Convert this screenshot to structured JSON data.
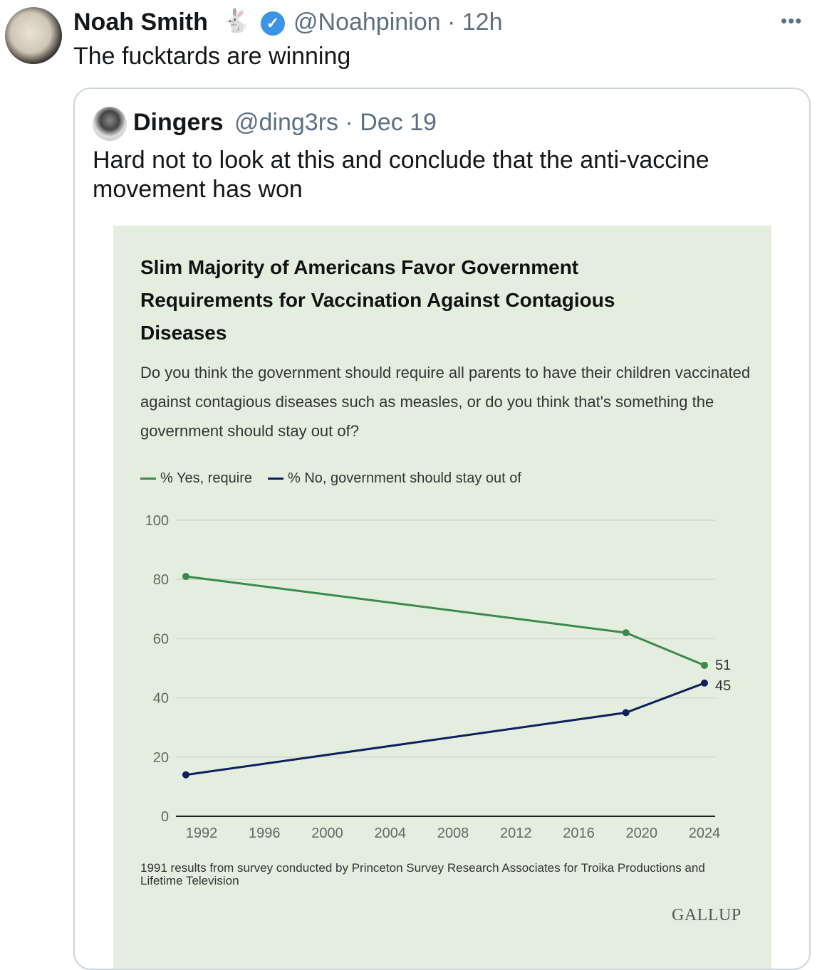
{
  "tweet": {
    "author_name": "Noah Smith",
    "emoji": "🐇",
    "handle_time": "@Noahpinion · 12h",
    "text": "The fucktards are winning",
    "more_icon": "more-horizontal-icon"
  },
  "quote": {
    "author_name": "Dingers",
    "handle_time": "@ding3rs · Dec 19",
    "text": "Hard not to look at this and conclude that the anti-vaccine movement has won"
  },
  "chart_data": {
    "type": "line",
    "title": "Slim Majority of Americans Favor Government Requirements for Vaccination Against Contagious Diseases",
    "subtitle": "Do you think the government should require all parents to have their children vaccinated against contagious diseases such as measles, or do you think that's something the government should stay out of?",
    "legend_placement": "top-left",
    "x_ticks": [
      "1992",
      "1996",
      "2000",
      "2004",
      "2008",
      "2012",
      "2016",
      "2020",
      "2024"
    ],
    "y_ticks": [
      "0",
      "20",
      "40",
      "60",
      "80",
      "100"
    ],
    "xlim": [
      1990,
      2025
    ],
    "ylim": [
      0,
      100
    ],
    "grid": true,
    "x": [
      1991,
      2019,
      2024
    ],
    "series": [
      {
        "name": "% Yes, require",
        "color": "#3a8a4f",
        "values": [
          81,
          62,
          51
        ],
        "end_label": "51"
      },
      {
        "name": "% No, government should stay out of",
        "color": "#0d1f5c",
        "values": [
          14,
          35,
          45
        ],
        "end_label": "45"
      }
    ],
    "note": "1991 results from survey conducted by Princeton Survey Research Associates for Troika Productions and Lifetime Television",
    "source": "GALLUP"
  }
}
